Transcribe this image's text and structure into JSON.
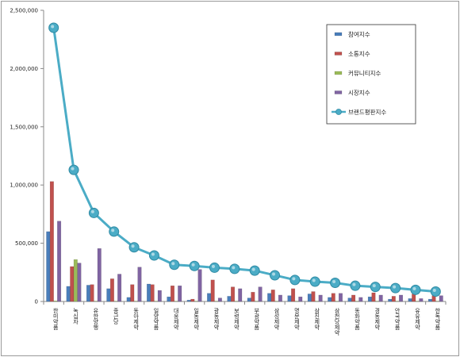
{
  "chart_data": {
    "type": "bar",
    "categories": [
      "한미약품",
      "녹십자",
      "유한양행",
      "종근당",
      "동아제약",
      "일양약품",
      "대웅제약",
      "일동제약",
      "광동제약",
      "보령제약",
      "부광약품",
      "삼성제약",
      "명문제약",
      "삼진제약",
      "삼천당제약",
      "동화약품",
      "경동제약",
      "안국약품",
      "유유제약",
      "한독약품"
    ],
    "series": [
      {
        "name": "참여지수",
        "kind": "bar",
        "color": "#4a7ebb",
        "values": [
          600000,
          130000,
          140000,
          110000,
          35000,
          150000,
          40000,
          12000,
          70000,
          45000,
          30000,
          70000,
          50000,
          65000,
          35000,
          30000,
          40000,
          20000,
          25000,
          20000
        ]
      },
      {
        "name": "소통지수",
        "kind": "bar",
        "color": "#c0504d",
        "values": [
          1030000,
          300000,
          145000,
          195000,
          145000,
          145000,
          135000,
          20000,
          185000,
          125000,
          80000,
          100000,
          110000,
          85000,
          70000,
          55000,
          75000,
          45000,
          65000,
          50000
        ]
      },
      {
        "name": "커뮤니티지수",
        "kind": "bar",
        "color": "#9bbb59",
        "values": [
          5000,
          360000,
          3000,
          3000,
          3000,
          3000,
          3000,
          3000,
          3000,
          3000,
          3000,
          3000,
          3000,
          3000,
          3000,
          3000,
          3000,
          3000,
          3000,
          3000
        ]
      },
      {
        "name": "시장지수",
        "kind": "bar",
        "color": "#8064a2",
        "values": [
          690000,
          330000,
          455000,
          235000,
          295000,
          95000,
          135000,
          275000,
          30000,
          110000,
          125000,
          55000,
          40000,
          55000,
          70000,
          35000,
          55000,
          55000,
          25000,
          50000
        ]
      },
      {
        "name": "브랜드평판지수",
        "kind": "line",
        "color": "#4bacc6",
        "values": [
          2350000,
          1130000,
          760000,
          600000,
          465000,
          395000,
          315000,
          305000,
          290000,
          280000,
          265000,
          225000,
          185000,
          170000,
          160000,
          135000,
          125000,
          115000,
          100000,
          85000
        ]
      }
    ],
    "y_ticks": [
      "0",
      "500,000",
      "1,000,000",
      "1,500,000",
      "2,000,000",
      "2,500,000"
    ],
    "ylim": [
      0,
      2500000
    ],
    "legend": "top-right",
    "grid": false
  }
}
